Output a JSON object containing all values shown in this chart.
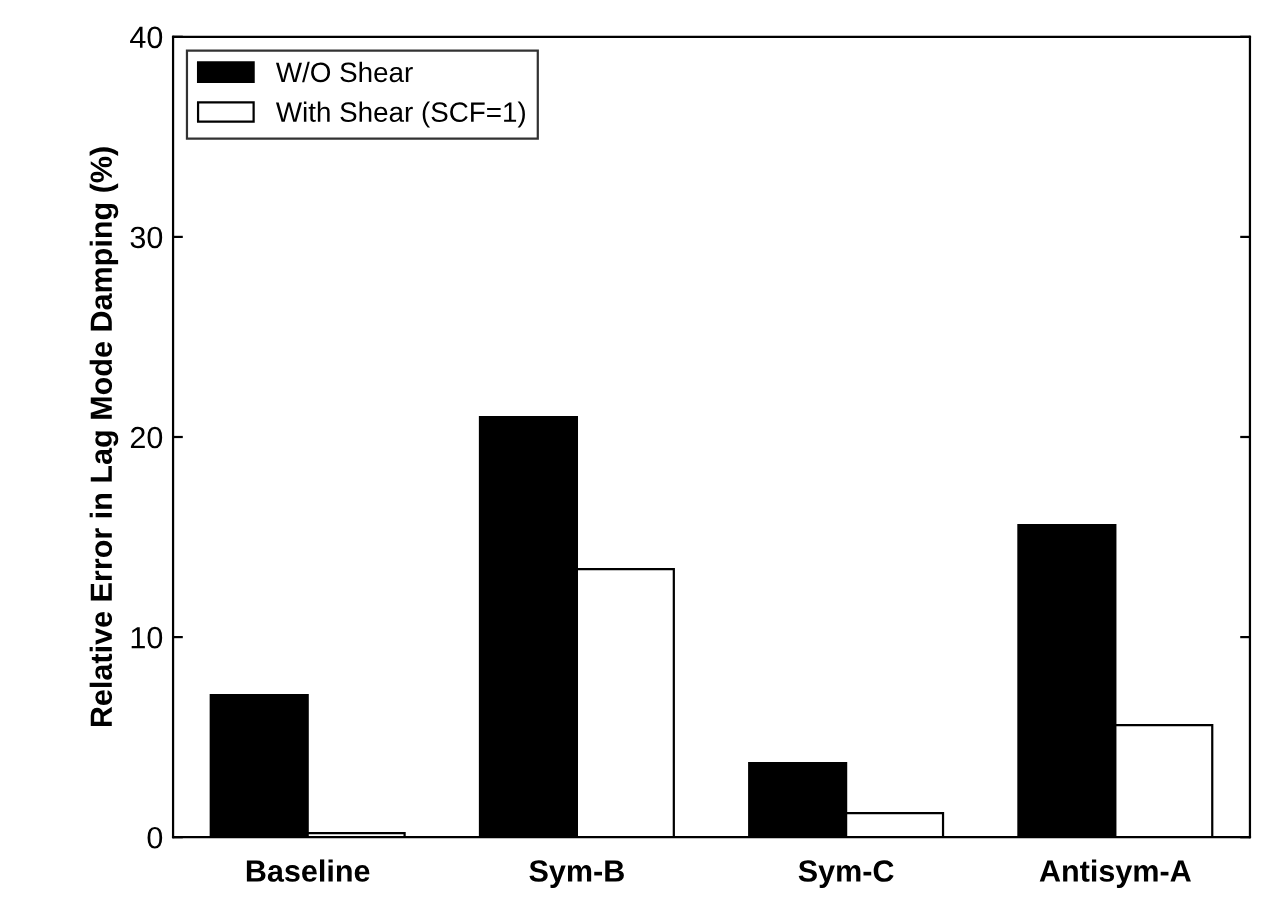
{
  "chart_data": {
    "type": "bar",
    "ylabel": "Relative Error in Lag Mode Damping (%)",
    "categories": [
      "Baseline",
      "Sym-B",
      "Sym-C",
      "Antisym-A"
    ],
    "series": [
      {
        "name": "W/O Shear",
        "color": "#000000",
        "values": [
          7.1,
          21.0,
          3.7,
          15.6
        ]
      },
      {
        "name": "With Shear (SCF=1)",
        "color": "#ffffff",
        "values": [
          0.2,
          13.4,
          1.2,
          5.6
        ]
      }
    ],
    "ylim": [
      0,
      40
    ],
    "yticks": [
      0,
      10,
      20,
      30,
      40
    ],
    "grid": false,
    "legend": "top left"
  }
}
